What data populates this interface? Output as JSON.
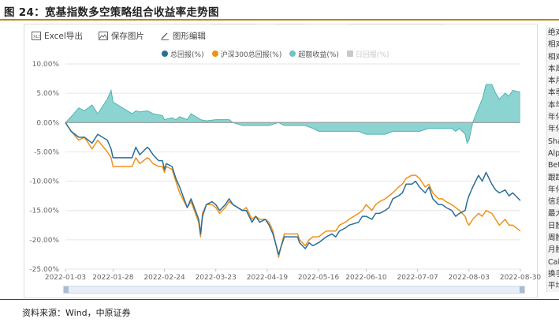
{
  "figure_title": "图 24：宽基指数多空策略组合收益率走势图",
  "toolbar": {
    "excel_label": "Excel导出",
    "save_label": "保存图片",
    "edit_label": "图形编辑"
  },
  "legend": [
    {
      "label": "总回报(%)",
      "color": "#2a6f97",
      "shape": "dot",
      "active": true
    },
    {
      "label": "沪深300总回报(%)",
      "color": "#f0911c",
      "shape": "dot",
      "active": true
    },
    {
      "label": "超额收益(%)",
      "color": "#6cc5c3",
      "shape": "dot",
      "active": true
    },
    {
      "label": "日回报(%)",
      "color": "#c8c8c8",
      "shape": "square",
      "active": false
    }
  ],
  "side_panel": [
    "绝对",
    "相对",
    "相对",
    "本周",
    "本月",
    "本季",
    "本年",
    "年化",
    "年化",
    "Sha",
    "Alp",
    "Bet",
    "跟踪",
    "年化",
    "信息",
    "最大",
    "日胜",
    "周胜",
    "月胜",
    "Cal",
    "换手",
    "平均"
  ],
  "source": "资料来源：Wind，中原证券",
  "colors": {
    "total": "#2a6f97",
    "hs300": "#f0911c",
    "excess_fill": "#7fcfcd",
    "excess_line": "#4fb3b0"
  },
  "chart_data": {
    "type": "line",
    "title": "",
    "xlabel": "",
    "ylabel": "",
    "ylim": [
      -25,
      10
    ],
    "yticks": [
      -25,
      -20,
      -15,
      -10,
      -5,
      0,
      5,
      10
    ],
    "ytick_labels": [
      "-25.00%",
      "-20.00%",
      "-15.00%",
      "-10.00%",
      "-5.00%",
      "0.00%",
      "5.00%",
      "10.00%"
    ],
    "x_range": [
      "2022-01-03",
      "2022-08-30"
    ],
    "xtick_labels": [
      "2022-01-03",
      "2022-01-28",
      "2022-02-24",
      "2022-03-23",
      "2022-04-19",
      "2022-05-16",
      "2022-06-10",
      "2022-07-07",
      "2022-08-03",
      "2022-08-30"
    ],
    "grid": true,
    "series": [
      {
        "name": "总回报(%)",
        "style": "line",
        "points": [
          [
            "2022-01-03",
            0
          ],
          [
            "2022-01-06",
            -1.5
          ],
          [
            "2022-01-10",
            -2.5
          ],
          [
            "2022-01-13",
            -2.5
          ],
          [
            "2022-01-17",
            -3.5
          ],
          [
            "2022-01-20",
            -2
          ],
          [
            "2022-01-25",
            -3
          ],
          [
            "2022-01-27",
            -4.5
          ],
          [
            "2022-01-28",
            -6
          ],
          [
            "2022-02-07",
            -6
          ],
          [
            "2022-02-09",
            -4.2
          ],
          [
            "2022-02-11",
            -5.5
          ],
          [
            "2022-02-15",
            -4.2
          ],
          [
            "2022-02-16",
            -4.5
          ],
          [
            "2022-02-18",
            -5.5
          ],
          [
            "2022-02-21",
            -6.5
          ],
          [
            "2022-02-23",
            -6.5
          ],
          [
            "2022-02-24",
            -8
          ],
          [
            "2022-02-25",
            -7
          ],
          [
            "2022-02-28",
            -7.5
          ],
          [
            "2022-03-02",
            -9.5
          ],
          [
            "2022-03-04",
            -11
          ],
          [
            "2022-03-08",
            -14.5
          ],
          [
            "2022-03-10",
            -13
          ],
          [
            "2022-03-14",
            -16.5
          ],
          [
            "2022-03-15",
            -19
          ],
          [
            "2022-03-16",
            -16
          ],
          [
            "2022-03-18",
            -14
          ],
          [
            "2022-03-21",
            -13.5
          ],
          [
            "2022-03-23",
            -14
          ],
          [
            "2022-03-25",
            -15
          ],
          [
            "2022-03-28",
            -14
          ],
          [
            "2022-03-30",
            -13
          ],
          [
            "2022-04-01",
            -14
          ],
          [
            "2022-04-06",
            -15
          ],
          [
            "2022-04-08",
            -15
          ],
          [
            "2022-04-11",
            -17
          ],
          [
            "2022-04-13",
            -16
          ],
          [
            "2022-04-15",
            -17
          ],
          [
            "2022-04-18",
            -16.5
          ],
          [
            "2022-04-20",
            -17.5
          ],
          [
            "2022-04-22",
            -19
          ],
          [
            "2022-04-25",
            -22.5
          ],
          [
            "2022-04-26",
            -21.5
          ],
          [
            "2022-04-28",
            -19.5
          ],
          [
            "2022-05-05",
            -19.5
          ],
          [
            "2022-05-06",
            -20.5
          ],
          [
            "2022-05-09",
            -21.5
          ],
          [
            "2022-05-11",
            -20.5
          ],
          [
            "2022-05-13",
            -21
          ],
          [
            "2022-05-16",
            -20.5
          ],
          [
            "2022-05-18",
            -20
          ],
          [
            "2022-05-20",
            -19.5
          ],
          [
            "2022-05-23",
            -19
          ],
          [
            "2022-05-25",
            -19.5
          ],
          [
            "2022-05-27",
            -18.5
          ],
          [
            "2022-05-30",
            -18
          ],
          [
            "2022-06-01",
            -17.5
          ],
          [
            "2022-06-06",
            -17
          ],
          [
            "2022-06-08",
            -16
          ],
          [
            "2022-06-10",
            -16
          ],
          [
            "2022-06-13",
            -16.5
          ],
          [
            "2022-06-15",
            -15.5
          ],
          [
            "2022-06-17",
            -15.5
          ],
          [
            "2022-06-20",
            -15
          ],
          [
            "2022-06-22",
            -14.5
          ],
          [
            "2022-06-24",
            -13
          ],
          [
            "2022-06-27",
            -12.5
          ],
          [
            "2022-06-29",
            -12
          ],
          [
            "2022-07-01",
            -10.5
          ],
          [
            "2022-07-04",
            -10.5
          ],
          [
            "2022-07-06",
            -10
          ],
          [
            "2022-07-08",
            -11
          ],
          [
            "2022-07-11",
            -12
          ],
          [
            "2022-07-13",
            -11
          ],
          [
            "2022-07-15",
            -13
          ],
          [
            "2022-07-18",
            -14
          ],
          [
            "2022-07-20",
            -14
          ],
          [
            "2022-07-22",
            -14.5
          ],
          [
            "2022-07-25",
            -15
          ],
          [
            "2022-07-27",
            -16
          ],
          [
            "2022-07-29",
            -15.5
          ],
          [
            "2022-08-01",
            -15
          ],
          [
            "2022-08-02",
            -13.5
          ],
          [
            "2022-08-03",
            -12.5
          ],
          [
            "2022-08-05",
            -11
          ],
          [
            "2022-08-08",
            -9
          ],
          [
            "2022-08-10",
            -10
          ],
          [
            "2022-08-12",
            -8.5
          ],
          [
            "2022-08-15",
            -10.5
          ],
          [
            "2022-08-17",
            -11.5
          ],
          [
            "2022-08-19",
            -12
          ],
          [
            "2022-08-22",
            -11.5
          ],
          [
            "2022-08-24",
            -12.5
          ],
          [
            "2022-08-26",
            -12
          ],
          [
            "2022-08-30",
            -13.3
          ]
        ]
      },
      {
        "name": "沪深300总回报(%)",
        "style": "line",
        "points": [
          [
            "2022-01-03",
            0
          ],
          [
            "2022-01-06",
            -1.5
          ],
          [
            "2022-01-10",
            -3
          ],
          [
            "2022-01-13",
            -2.5
          ],
          [
            "2022-01-17",
            -4.5
          ],
          [
            "2022-01-20",
            -3
          ],
          [
            "2022-01-25",
            -5
          ],
          [
            "2022-01-27",
            -6
          ],
          [
            "2022-01-28",
            -7.5
          ],
          [
            "2022-02-07",
            -7.5
          ],
          [
            "2022-02-09",
            -6
          ],
          [
            "2022-02-11",
            -7
          ],
          [
            "2022-02-15",
            -6
          ],
          [
            "2022-02-16",
            -6.2
          ],
          [
            "2022-02-18",
            -7
          ],
          [
            "2022-02-21",
            -7.5
          ],
          [
            "2022-02-23",
            -7.5
          ],
          [
            "2022-02-24",
            -8.5
          ],
          [
            "2022-02-25",
            -7.5
          ],
          [
            "2022-02-28",
            -8
          ],
          [
            "2022-03-02",
            -10
          ],
          [
            "2022-03-04",
            -12
          ],
          [
            "2022-03-08",
            -14.5
          ],
          [
            "2022-03-10",
            -13.5
          ],
          [
            "2022-03-14",
            -17
          ],
          [
            "2022-03-15",
            -19.5
          ],
          [
            "2022-03-16",
            -15.5
          ],
          [
            "2022-03-18",
            -14
          ],
          [
            "2022-03-21",
            -14
          ],
          [
            "2022-03-23",
            -14.5
          ],
          [
            "2022-03-25",
            -15.5
          ],
          [
            "2022-03-28",
            -14.5
          ],
          [
            "2022-03-30",
            -13.5
          ],
          [
            "2022-04-01",
            -14
          ],
          [
            "2022-04-06",
            -15
          ],
          [
            "2022-04-08",
            -14.5
          ],
          [
            "2022-04-11",
            -16.5
          ],
          [
            "2022-04-13",
            -16
          ],
          [
            "2022-04-15",
            -16.5
          ],
          [
            "2022-04-18",
            -16.5
          ],
          [
            "2022-04-20",
            -17
          ],
          [
            "2022-04-22",
            -18.5
          ],
          [
            "2022-04-25",
            -23
          ],
          [
            "2022-04-26",
            -21.5
          ],
          [
            "2022-04-28",
            -19
          ],
          [
            "2022-05-05",
            -19
          ],
          [
            "2022-05-06",
            -20
          ],
          [
            "2022-05-09",
            -21
          ],
          [
            "2022-05-11",
            -20
          ],
          [
            "2022-05-13",
            -19.5
          ],
          [
            "2022-05-16",
            -19.5
          ],
          [
            "2022-05-18",
            -19
          ],
          [
            "2022-05-20",
            -18.5
          ],
          [
            "2022-05-23",
            -18.5
          ],
          [
            "2022-05-25",
            -18.5
          ],
          [
            "2022-05-27",
            -17.5
          ],
          [
            "2022-05-30",
            -17
          ],
          [
            "2022-06-01",
            -16.5
          ],
          [
            "2022-06-06",
            -15.5
          ],
          [
            "2022-06-08",
            -15
          ],
          [
            "2022-06-10",
            -14
          ],
          [
            "2022-06-13",
            -15
          ],
          [
            "2022-06-15",
            -14
          ],
          [
            "2022-06-17",
            -13.5
          ],
          [
            "2022-06-20",
            -13
          ],
          [
            "2022-06-22",
            -12.5
          ],
          [
            "2022-06-24",
            -12
          ],
          [
            "2022-06-27",
            -11
          ],
          [
            "2022-06-29",
            -10.5
          ],
          [
            "2022-07-01",
            -9.5
          ],
          [
            "2022-07-04",
            -9
          ],
          [
            "2022-07-06",
            -9
          ],
          [
            "2022-07-08",
            -9.5
          ],
          [
            "2022-07-11",
            -11
          ],
          [
            "2022-07-13",
            -10.5
          ],
          [
            "2022-07-15",
            -12
          ],
          [
            "2022-07-18",
            -13
          ],
          [
            "2022-07-20",
            -13
          ],
          [
            "2022-07-22",
            -13.5
          ],
          [
            "2022-07-25",
            -14
          ],
          [
            "2022-07-27",
            -14.5
          ],
          [
            "2022-07-29",
            -15
          ],
          [
            "2022-08-01",
            -16
          ],
          [
            "2022-08-02",
            -17
          ],
          [
            "2022-08-03",
            -17.5
          ],
          [
            "2022-08-05",
            -16.5
          ],
          [
            "2022-08-08",
            -15.5
          ],
          [
            "2022-08-10",
            -16
          ],
          [
            "2022-08-12",
            -15
          ],
          [
            "2022-08-15",
            -15.5
          ],
          [
            "2022-08-17",
            -16.5
          ],
          [
            "2022-08-19",
            -17.5
          ],
          [
            "2022-08-22",
            -16.5
          ],
          [
            "2022-08-24",
            -17.5
          ],
          [
            "2022-08-26",
            -17.5
          ],
          [
            "2022-08-30",
            -18.5
          ]
        ]
      },
      {
        "name": "超额收益(%)",
        "style": "area",
        "points": [
          [
            "2022-01-03",
            0
          ],
          [
            "2022-01-06",
            1
          ],
          [
            "2022-01-10",
            2.5
          ],
          [
            "2022-01-13",
            2
          ],
          [
            "2022-01-17",
            3
          ],
          [
            "2022-01-20",
            1.5
          ],
          [
            "2022-01-25",
            4
          ],
          [
            "2022-01-27",
            5.5
          ],
          [
            "2022-01-28",
            3.5
          ],
          [
            "2022-02-07",
            1.5
          ],
          [
            "2022-02-09",
            2
          ],
          [
            "2022-02-11",
            1.8
          ],
          [
            "2022-02-15",
            2
          ],
          [
            "2022-02-18",
            1.5
          ],
          [
            "2022-02-23",
            1.2
          ],
          [
            "2022-02-24",
            0.5
          ],
          [
            "2022-02-28",
            0.8
          ],
          [
            "2022-03-02",
            0.5
          ],
          [
            "2022-03-04",
            1
          ],
          [
            "2022-03-08",
            0.5
          ],
          [
            "2022-03-10",
            1.5
          ],
          [
            "2022-03-15",
            0.5
          ],
          [
            "2022-03-18",
            0.3
          ],
          [
            "2022-03-23",
            0.5
          ],
          [
            "2022-03-25",
            0.5
          ],
          [
            "2022-03-30",
            0.5
          ],
          [
            "2022-04-01",
            0
          ],
          [
            "2022-04-06",
            -0.5
          ],
          [
            "2022-04-11",
            -0.5
          ],
          [
            "2022-04-15",
            -0.5
          ],
          [
            "2022-04-20",
            -0.5
          ],
          [
            "2022-04-25",
            0
          ],
          [
            "2022-04-28",
            -0.5
          ],
          [
            "2022-05-06",
            -0.5
          ],
          [
            "2022-05-09",
            -0.5
          ],
          [
            "2022-05-13",
            -1
          ],
          [
            "2022-05-16",
            -1.5
          ],
          [
            "2022-05-20",
            -1.5
          ],
          [
            "2022-05-25",
            -1.5
          ],
          [
            "2022-05-30",
            -1.5
          ],
          [
            "2022-06-06",
            -1.5
          ],
          [
            "2022-06-10",
            -2
          ],
          [
            "2022-06-15",
            -2
          ],
          [
            "2022-06-20",
            -2
          ],
          [
            "2022-06-24",
            -1.5
          ],
          [
            "2022-06-29",
            -1.5
          ],
          [
            "2022-07-04",
            -1.5
          ],
          [
            "2022-07-08",
            -1.5
          ],
          [
            "2022-07-13",
            -1
          ],
          [
            "2022-07-18",
            -1
          ],
          [
            "2022-07-22",
            -1
          ],
          [
            "2022-07-25",
            -1
          ],
          [
            "2022-07-27",
            -1.5
          ],
          [
            "2022-07-29",
            -1
          ],
          [
            "2022-08-01",
            -2
          ],
          [
            "2022-08-02",
            -3.5
          ],
          [
            "2022-08-03",
            -3
          ],
          [
            "2022-08-05",
            0
          ],
          [
            "2022-08-08",
            2.5
          ],
          [
            "2022-08-10",
            4
          ],
          [
            "2022-08-12",
            6.5
          ],
          [
            "2022-08-15",
            6.5
          ],
          [
            "2022-08-17",
            5
          ],
          [
            "2022-08-19",
            4
          ],
          [
            "2022-08-22",
            5
          ],
          [
            "2022-08-24",
            4.5
          ],
          [
            "2022-08-26",
            5.5
          ],
          [
            "2022-08-30",
            5.2
          ]
        ]
      }
    ]
  }
}
